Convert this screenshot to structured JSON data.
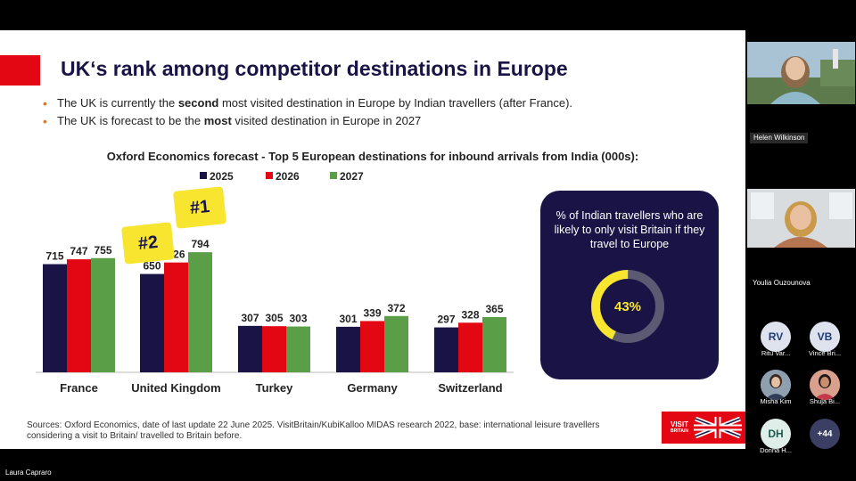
{
  "slide": {
    "title": "UK‘s rank among competitor destinations in Europe",
    "bullets": [
      {
        "pre": "The UK is currently the ",
        "bold": "second",
        "post": " most visited destination in Europe by Indian travellers (after France)."
      },
      {
        "pre": "The UK is forecast to be the ",
        "bold": "most",
        "post": " visited destination in Europe in 2027"
      }
    ],
    "chart_title": "Oxford Economics forecast - Top 5 European destinations for inbound arrivals from India (000s):",
    "badges": [
      "#2",
      "#1"
    ],
    "stat_card": {
      "text": "% of Indian travellers who are likely to only visit Britain if they travel to Europe",
      "value_label": "43%"
    },
    "sources": "Sources: Oxford Economics, date of last update 22 June 2025. VisitBritain/KubiKalloo MIDAS research 2022, base: international leisure travellers considering a visit to Britain/ travelled to Britain before.",
    "logo": {
      "line1": "VISIT",
      "line2": "BRITAIN"
    }
  },
  "chart_data": {
    "type": "bar",
    "title": "Oxford Economics forecast - Top 5 European destinations for inbound arrivals from India (000s):",
    "categories": [
      "France",
      "United Kingdom",
      "Turkey",
      "Germany",
      "Switzerland"
    ],
    "series": [
      {
        "name": "2025",
        "color": "#1a1446",
        "values": [
          715,
          650,
          307,
          301,
          297
        ]
      },
      {
        "name": "2026",
        "color": "#e30613",
        "values": [
          747,
          726,
          305,
          339,
          328
        ]
      },
      {
        "name": "2027",
        "color": "#5a9e48",
        "values": [
          755,
          794,
          303,
          372,
          365
        ]
      }
    ],
    "ylim": [
      0,
      850
    ],
    "grid": false,
    "legend": "top-center",
    "donut": {
      "value": 43,
      "max": 100,
      "color": "#f7e52f",
      "track": "#5c5a72"
    }
  },
  "participants": {
    "presenter": "Laura Capraro",
    "video": [
      {
        "name": "Helen Wilkinson"
      },
      {
        "name": "Youlia Ouzounova"
      }
    ],
    "avatars": [
      {
        "initials": "RV",
        "name": "Ritu Var...",
        "bg": "#dfe3ee",
        "fg": "#1d3c78"
      },
      {
        "initials": "VB",
        "name": "Vince Bri...",
        "bg": "#dfe3ee",
        "fg": "#1d3c78"
      },
      {
        "initials": "",
        "name": "Misha Kim",
        "bg": "#7a8a9a",
        "fg": "#ffffff"
      },
      {
        "initials": "",
        "name": "Shuja Bi...",
        "bg": "#c98a7a",
        "fg": "#ffffff"
      },
      {
        "initials": "DH",
        "name": "Donna H...",
        "bg": "#dfeee9",
        "fg": "#1d5c50"
      },
      {
        "initials": "+44",
        "name": "",
        "bg": "#3a3f63",
        "fg": "#ffffff"
      }
    ]
  }
}
